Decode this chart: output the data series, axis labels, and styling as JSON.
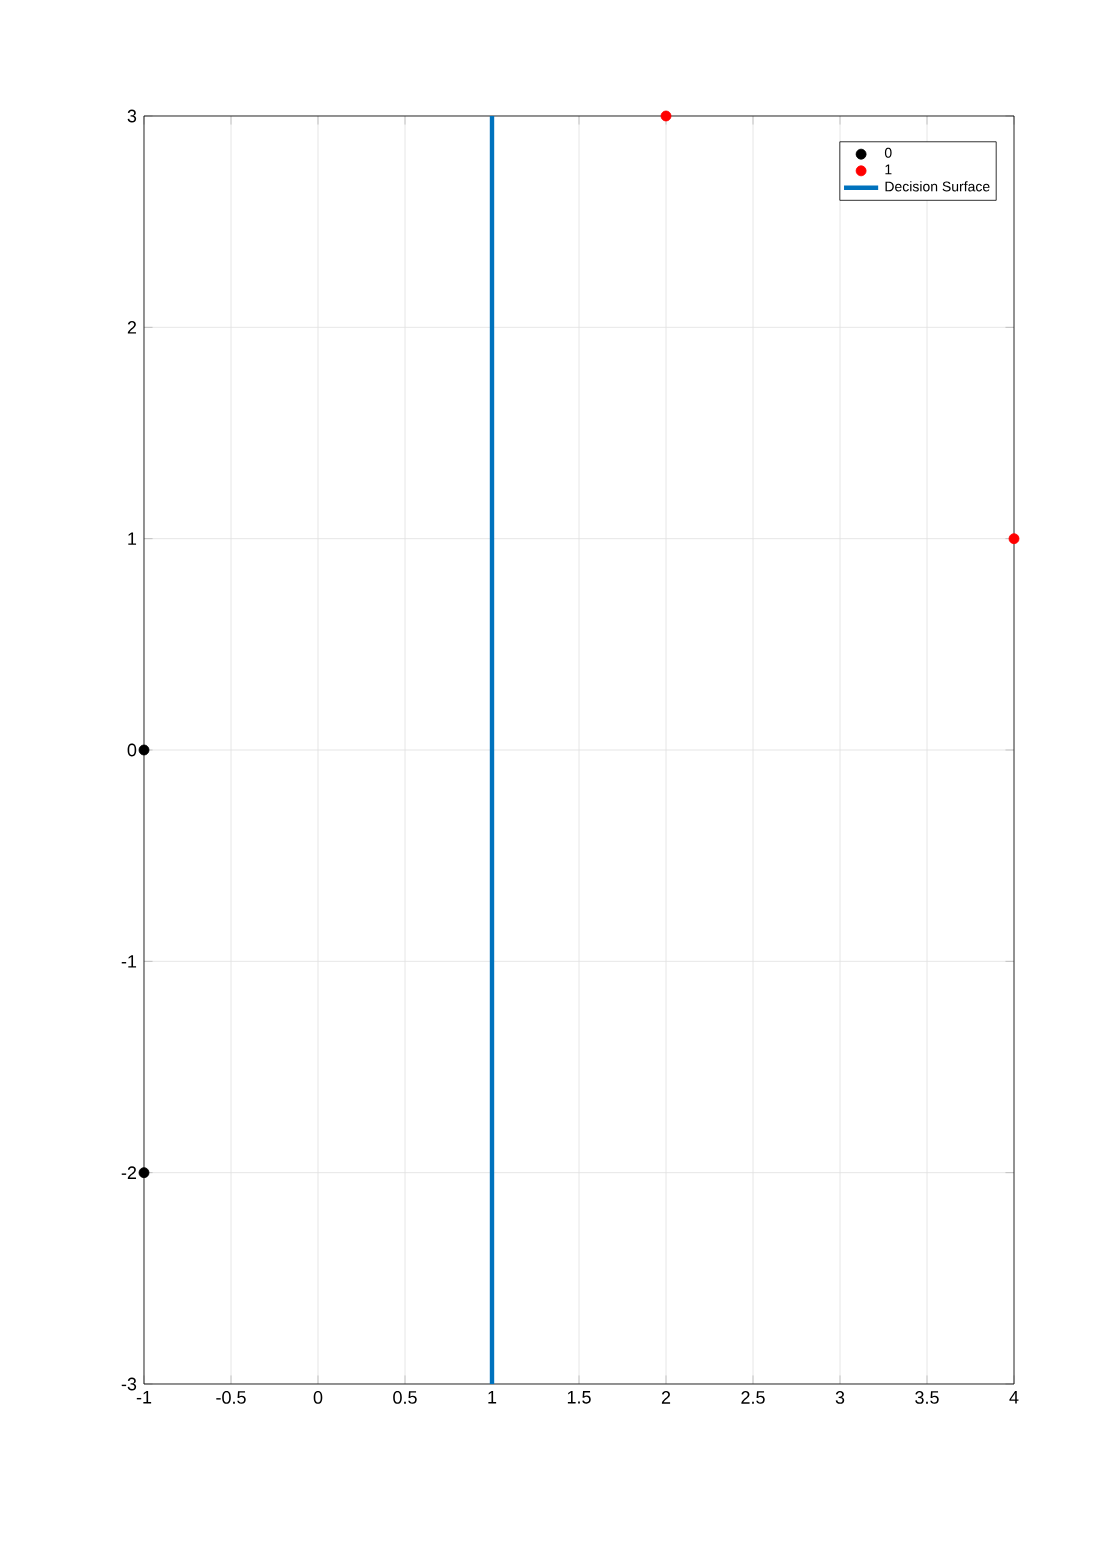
{
  "chart_data": {
    "type": "scatter",
    "series": [
      {
        "name": "0",
        "color": "#000000",
        "x": [
          -1,
          -1
        ],
        "values": [
          0,
          -2
        ],
        "marker": "circle"
      },
      {
        "name": "1",
        "color": "#ff0000",
        "x": [
          2,
          4
        ],
        "values": [
          3,
          1
        ],
        "marker": "circle"
      },
      {
        "name": "Decision Surface",
        "type": "line",
        "color": "#0072bd",
        "x": [
          1,
          1
        ],
        "values": [
          -3,
          3
        ],
        "line_style": "solid"
      }
    ],
    "xlim": [
      -1,
      4
    ],
    "ylim": [
      -3,
      3
    ],
    "xticks": [
      -1,
      -0.5,
      0,
      0.5,
      1,
      1.5,
      2,
      2.5,
      3,
      3.5,
      4
    ],
    "yticks": [
      -3,
      -2,
      -1,
      0,
      1,
      2,
      3
    ],
    "grid": true,
    "legend": "top right"
  }
}
